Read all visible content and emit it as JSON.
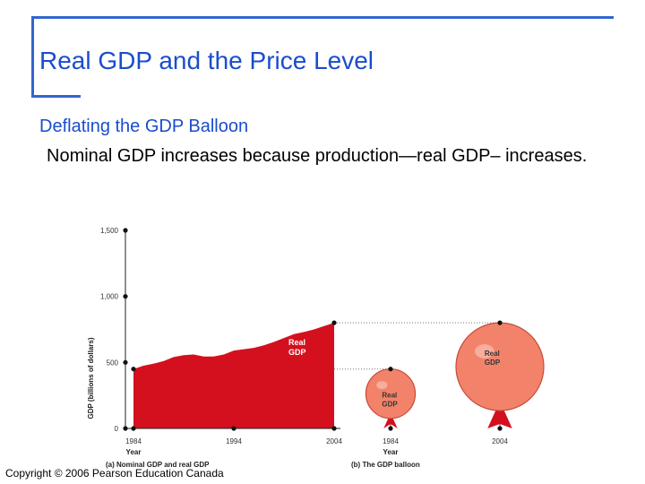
{
  "slide": {
    "title": "Real GDP and the Price Level",
    "subheading": "Deflating the GDP Balloon",
    "body": "Nominal GDP increases because production—real GDP– increases.",
    "copyright": "Copyright © 2006 Pearson Education Canada"
  },
  "colors": {
    "accent": "#1a4dcc",
    "frame": "#3366cc",
    "real_gdp_fill": "#d4101e",
    "balloon_fill": "#f2836a"
  },
  "chart_data": [
    {
      "type": "area",
      "caption": "(a) Nominal GDP and real GDP",
      "xlabel": "Year",
      "ylabel": "GDP (billions of dollars)",
      "ylim": [
        0,
        1500
      ],
      "xlim": [
        1984,
        2004
      ],
      "x_ticks": [
        "1984",
        "1994",
        "2004"
      ],
      "y_ticks": [
        "0",
        "500",
        "1,000",
        "1,500"
      ],
      "series": [
        {
          "name": "Real GDP",
          "x": [
            1984,
            1985,
            1986,
            1987,
            1988,
            1989,
            1990,
            1991,
            1992,
            1993,
            1994,
            1995,
            1996,
            1997,
            1998,
            1999,
            2000,
            2001,
            2002,
            2003,
            2004
          ],
          "values": [
            450,
            475,
            490,
            510,
            540,
            555,
            560,
            545,
            545,
            560,
            590,
            600,
            610,
            630,
            655,
            685,
            715,
            730,
            750,
            775,
            800
          ]
        }
      ]
    },
    {
      "type": "other",
      "caption": "(b) The GDP balloon",
      "xlabel": "Year",
      "balloons": [
        {
          "year": "1984",
          "label": "Real GDP",
          "value": 450
        },
        {
          "year": "2004",
          "label": "Real GDP",
          "value": 800
        }
      ]
    }
  ]
}
